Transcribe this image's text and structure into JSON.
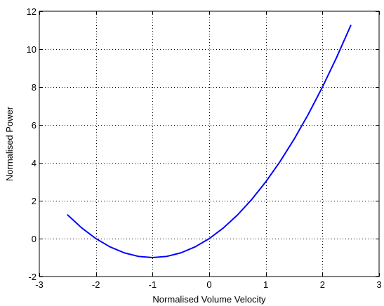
{
  "chart_data": {
    "type": "line",
    "title": "",
    "xlabel": "Normalised Volume Velocity",
    "ylabel": "Normalised Power",
    "xlim": [
      -3,
      3
    ],
    "ylim": [
      -2,
      12
    ],
    "xticks": [
      -3,
      -2,
      -1,
      0,
      1,
      2,
      3
    ],
    "yticks": [
      -2,
      0,
      2,
      4,
      6,
      8,
      10,
      12
    ],
    "xtick_labels": [
      "-3",
      "-2",
      "-1",
      "0",
      "1",
      "2",
      "3"
    ],
    "ytick_labels": [
      "-2",
      "0",
      "2",
      "4",
      "6",
      "8",
      "10",
      "12"
    ],
    "grid": true,
    "grid_style": "dotted",
    "series": [
      {
        "color": "#0000ff",
        "x": [
          -2.5,
          -2.25,
          -2.0,
          -1.75,
          -1.5,
          -1.25,
          -1.0,
          -0.75,
          -0.5,
          -0.25,
          0.0,
          0.25,
          0.5,
          0.75,
          1.0,
          1.25,
          1.5,
          1.75,
          2.0,
          2.25,
          2.5
        ],
        "y": [
          1.25,
          0.5625,
          0.0,
          -0.4375,
          -0.75,
          -0.9375,
          -1.0,
          -0.9375,
          -0.75,
          -0.4375,
          0.0,
          0.5625,
          1.25,
          2.0625,
          3.0,
          4.0625,
          5.25,
          6.5625,
          8.0,
          9.5625,
          11.25
        ]
      }
    ]
  }
}
